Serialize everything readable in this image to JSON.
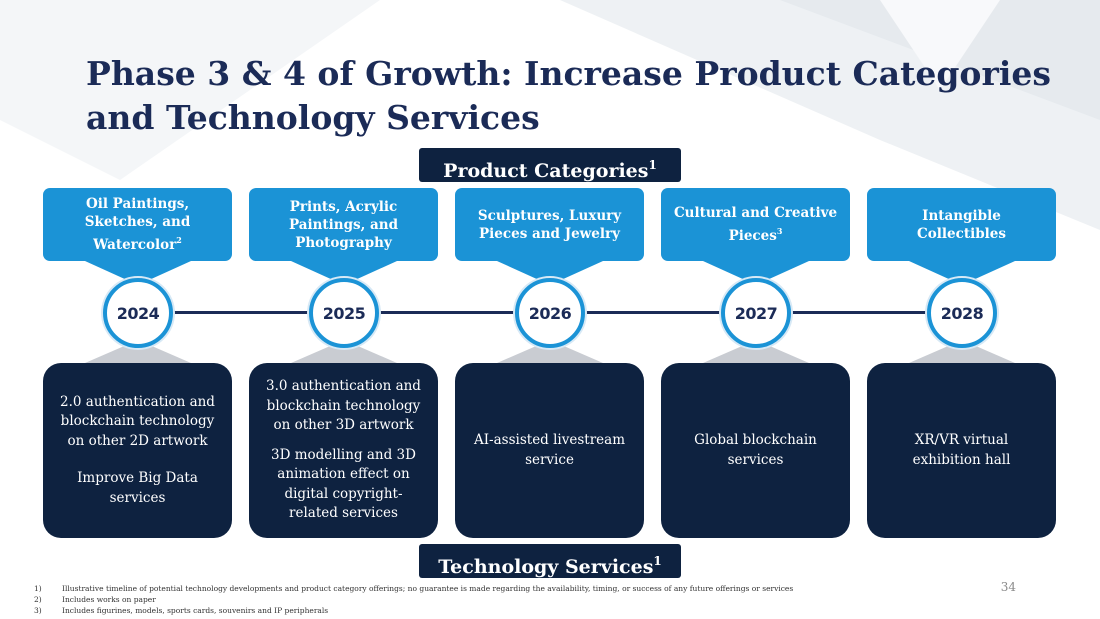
{
  "title_line1": "Phase 3 & 4 of Growth: Increase Product Categories",
  "title_line2": "and Technology Services",
  "product_label": "Product Categories",
  "product_label_sup": "1",
  "tech_label": "Technology Services",
  "tech_label_sup": "1",
  "categories": [
    {
      "text": "Oil Paintings, Sketches, and Watercolor",
      "sup": "2"
    },
    {
      "text": "Prints, Acrylic Paintings, and Photography",
      "sup": ""
    },
    {
      "text": "Sculptures, Luxury Pieces and Jewelry",
      "sup": ""
    },
    {
      "text": "Cultural and Creative Pieces",
      "sup": "3"
    },
    {
      "text": "Intangible Collectibles",
      "sup": ""
    }
  ],
  "years": [
    "2024",
    "2025",
    "2026",
    "2027",
    "2028"
  ],
  "tech": [
    {
      "p1": "2.0 authentication and blockchain technology on other 2D artwork",
      "p2": "Improve Big Data services"
    },
    {
      "p1": "3.0 authentication and blockchain technology on other 3D artwork",
      "p2": "3D modelling and 3D animation effect on digital copyright-related services"
    },
    {
      "p1": "AI-assisted livestream service"
    },
    {
      "p1": "Global blockchain services"
    },
    {
      "p1": "XR/VR virtual exhibition hall"
    }
  ],
  "footnotes": [
    {
      "num": "1)",
      "text": "Illustrative timeline of potential technology developments and product category offerings; no guarantee is made regarding the availability, timing, or success of any future offerings or services"
    },
    {
      "num": "2)",
      "text": "Includes works on paper"
    },
    {
      "num": "3)",
      "text": "Includes figurines, models, sports cards, souvenirs and IP peripherals"
    }
  ],
  "page_number": "34",
  "colors": {
    "navy": "#0e2240",
    "accent_blue": "#1b93d6",
    "title": "#1b2b57"
  }
}
